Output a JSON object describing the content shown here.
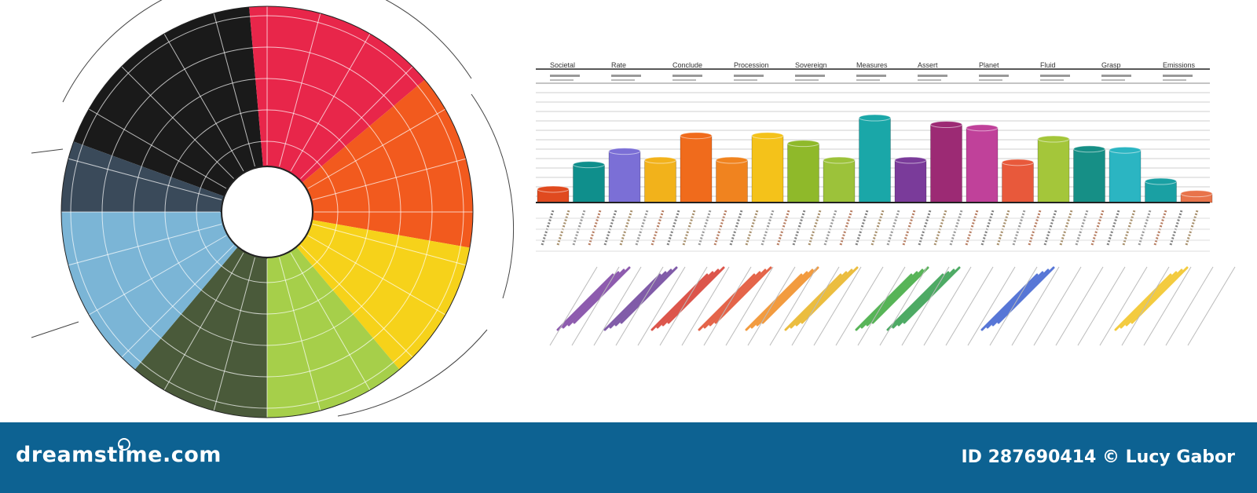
{
  "illustration": {
    "header_labels": [
      "Societal",
      "Rate",
      "Conclude",
      "Procession",
      "Sovereign",
      "Measures",
      "Assert",
      "Planet",
      "Fluid",
      "Grasp",
      "Emissions"
    ],
    "bar_colors": [
      "#e04a1f",
      "#0f8f8c",
      "#7b6fd6",
      "#f2b21b",
      "#f06b1c",
      "#f0831f",
      "#f4c21a",
      "#8fb92a",
      "#9cc23a",
      "#1aa7a8",
      "#7a3b9a",
      "#9c2a74",
      "#c0419a",
      "#e8593b",
      "#a4c63a",
      "#168f86",
      "#2bb5c2",
      "#1aa0a3",
      "#e8734a"
    ],
    "stroke_colors": [
      "#7a3fa0",
      "#6a3f9a",
      "#d6382c",
      "#e04a2a",
      "#f08a1e",
      "#e8b21e",
      "#3aa83a",
      "#2f9c4a",
      "#3a5fd0",
      "#f2c21e"
    ],
    "wheel_colors": [
      "#1a1a1a",
      "#e8264a",
      "#f25a1e",
      "#f6d21a",
      "#a6cf4a",
      "#4a5a3a",
      "#7bb5d6",
      "#3a4a5a"
    ]
  },
  "footer": {
    "brand": "dreamstime.com",
    "image_id": "ID 287690414",
    "copyright": "©",
    "author": "Lucy Gabor",
    "credit": "ID 287690414 © Lucy Gabor"
  },
  "watermark": "dreamstime"
}
